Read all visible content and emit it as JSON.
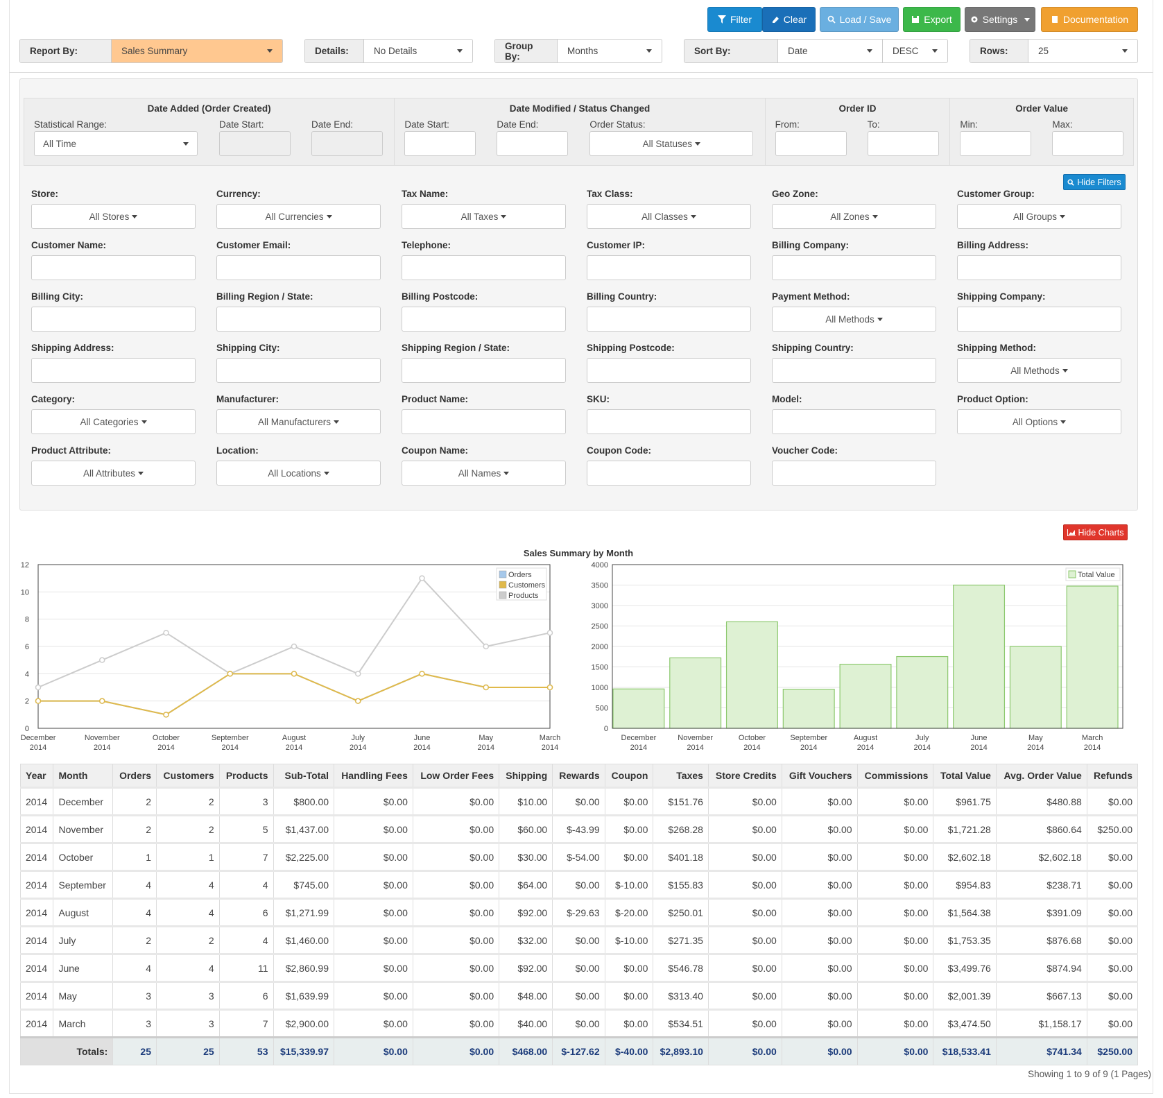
{
  "toolbar": {
    "filter": "Filter",
    "clear": "Clear",
    "load_save": "Load / Save",
    "export": "Export",
    "settings": "Settings",
    "documentation": "Documentation"
  },
  "report_bar": {
    "report_by_label": "Report By:",
    "report_by_value": "Sales Summary",
    "details_label": "Details:",
    "details_value": "No Details",
    "group_by_label": "Group By:",
    "group_by_value": "Months",
    "sort_by_label": "Sort By:",
    "sort_by_value": "Date",
    "sort_dir_value": "DESC",
    "rows_label": "Rows:",
    "rows_value": "25"
  },
  "date_filters": {
    "date_added_title": "Date Added (Order Created)",
    "statistical_range_label": "Statistical Range:",
    "statistical_range_value": "All Time",
    "date_start_label": "Date Start:",
    "date_end_label": "Date End:",
    "date_modified_title": "Date Modified / Status Changed",
    "order_status_label": "Order Status:",
    "order_status_value": "All Statuses",
    "order_id_title": "Order ID",
    "from_label": "From:",
    "to_label": "To:",
    "order_value_title": "Order Value",
    "min_label": "Min:",
    "max_label": "Max:"
  },
  "hide_filters": "Hide Filters",
  "filter_fields": [
    {
      "label": "Store:",
      "dropdown": "All Stores"
    },
    {
      "label": "Currency:",
      "dropdown": "All Currencies"
    },
    {
      "label": "Tax Name:",
      "dropdown": "All Taxes"
    },
    {
      "label": "Tax Class:",
      "dropdown": "All Classes"
    },
    {
      "label": "Geo Zone:",
      "dropdown": "All Zones"
    },
    {
      "label": "Customer Group:",
      "dropdown": "All Groups"
    },
    {
      "label": "Customer Name:",
      "dropdown": ""
    },
    {
      "label": "Customer Email:",
      "dropdown": ""
    },
    {
      "label": "Telephone:",
      "dropdown": ""
    },
    {
      "label": "Customer IP:",
      "dropdown": ""
    },
    {
      "label": "Billing Company:",
      "dropdown": ""
    },
    {
      "label": "Billing Address:",
      "dropdown": ""
    },
    {
      "label": "Billing City:",
      "dropdown": ""
    },
    {
      "label": "Billing Region / State:",
      "dropdown": ""
    },
    {
      "label": "Billing Postcode:",
      "dropdown": ""
    },
    {
      "label": "Billing Country:",
      "dropdown": ""
    },
    {
      "label": "Payment Method:",
      "dropdown": "All Methods"
    },
    {
      "label": "Shipping Company:",
      "dropdown": ""
    },
    {
      "label": "Shipping Address:",
      "dropdown": ""
    },
    {
      "label": "Shipping City:",
      "dropdown": ""
    },
    {
      "label": "Shipping Region / State:",
      "dropdown": ""
    },
    {
      "label": "Shipping Postcode:",
      "dropdown": ""
    },
    {
      "label": "Shipping Country:",
      "dropdown": ""
    },
    {
      "label": "Shipping Method:",
      "dropdown": "All Methods"
    },
    {
      "label": "Category:",
      "dropdown": "All Categories"
    },
    {
      "label": "Manufacturer:",
      "dropdown": "All Manufacturers"
    },
    {
      "label": "Product Name:",
      "dropdown": ""
    },
    {
      "label": "SKU:",
      "dropdown": ""
    },
    {
      "label": "Model:",
      "dropdown": ""
    },
    {
      "label": "Product Option:",
      "dropdown": "All Options"
    },
    {
      "label": "Product Attribute:",
      "dropdown": "All Attributes"
    },
    {
      "label": "Location:",
      "dropdown": "All Locations"
    },
    {
      "label": "Coupon Name:",
      "dropdown": "All Names"
    },
    {
      "label": "Coupon Code:",
      "dropdown": ""
    },
    {
      "label": "Voucher Code:",
      "dropdown": ""
    }
  ],
  "hide_charts": "Hide Charts",
  "chart_data": [
    {
      "type": "line",
      "title": "Sales Summary by Month",
      "categories": [
        "December 2014",
        "November 2014",
        "October 2014",
        "September 2014",
        "August 2014",
        "July 2014",
        "June 2014",
        "May 2014",
        "March 2014"
      ],
      "series": [
        {
          "name": "Orders",
          "values": [
            2,
            2,
            1,
            4,
            4,
            2,
            4,
            3,
            3
          ],
          "color": "#a6c8ea"
        },
        {
          "name": "Customers",
          "values": [
            2,
            2,
            1,
            4,
            4,
            2,
            4,
            3,
            3
          ],
          "color": "#e0b94a"
        },
        {
          "name": "Products",
          "values": [
            3,
            5,
            7,
            4,
            6,
            4,
            11,
            6,
            7
          ],
          "color": "#cccccc"
        }
      ],
      "ylim": [
        0,
        12
      ],
      "yticks": [
        0,
        2,
        4,
        6,
        8,
        10,
        12
      ],
      "grid": true,
      "legend": "top-right"
    },
    {
      "type": "bar",
      "categories": [
        "December 2014",
        "November 2014",
        "October 2014",
        "September 2014",
        "August 2014",
        "July 2014",
        "June 2014",
        "May 2014",
        "March 2014"
      ],
      "series": [
        {
          "name": "Total Value",
          "values": [
            961.75,
            1721.28,
            2602.18,
            954.83,
            1564.38,
            1753.35,
            3499.76,
            2001.39,
            3474.5
          ],
          "color": "#def1d3"
        }
      ],
      "ylim": [
        0,
        4000
      ],
      "yticks": [
        0,
        500,
        1000,
        1500,
        2000,
        2500,
        3000,
        3500,
        4000
      ],
      "grid": true,
      "legend": "top-right"
    }
  ],
  "table": {
    "headers": [
      "Year",
      "Month",
      "Orders",
      "Customers",
      "Products",
      "Sub-Total",
      "Handling Fees",
      "Low Order Fees",
      "Shipping",
      "Rewards",
      "Coupon",
      "Taxes",
      "Store Credits",
      "Gift Vouchers",
      "Commissions",
      "Total Value",
      "Avg. Order Value",
      "Refunds"
    ],
    "rows": [
      [
        "2014",
        "December",
        "2",
        "2",
        "3",
        "$800.00",
        "$0.00",
        "$0.00",
        "$10.00",
        "$0.00",
        "$0.00",
        "$151.76",
        "$0.00",
        "$0.00",
        "$0.00",
        "$961.75",
        "$480.88",
        "$0.00"
      ],
      [
        "2014",
        "November",
        "2",
        "2",
        "5",
        "$1,437.00",
        "$0.00",
        "$0.00",
        "$60.00",
        "$-43.99",
        "$0.00",
        "$268.28",
        "$0.00",
        "$0.00",
        "$0.00",
        "$1,721.28",
        "$860.64",
        "$250.00"
      ],
      [
        "2014",
        "October",
        "1",
        "1",
        "7",
        "$2,225.00",
        "$0.00",
        "$0.00",
        "$30.00",
        "$-54.00",
        "$0.00",
        "$401.18",
        "$0.00",
        "$0.00",
        "$0.00",
        "$2,602.18",
        "$2,602.18",
        "$0.00"
      ],
      [
        "2014",
        "September",
        "4",
        "4",
        "4",
        "$745.00",
        "$0.00",
        "$0.00",
        "$64.00",
        "$0.00",
        "$-10.00",
        "$155.83",
        "$0.00",
        "$0.00",
        "$0.00",
        "$954.83",
        "$238.71",
        "$0.00"
      ],
      [
        "2014",
        "August",
        "4",
        "4",
        "6",
        "$1,271.99",
        "$0.00",
        "$0.00",
        "$92.00",
        "$-29.63",
        "$-20.00",
        "$250.01",
        "$0.00",
        "$0.00",
        "$0.00",
        "$1,564.38",
        "$391.09",
        "$0.00"
      ],
      [
        "2014",
        "July",
        "2",
        "2",
        "4",
        "$1,460.00",
        "$0.00",
        "$0.00",
        "$32.00",
        "$0.00",
        "$-10.00",
        "$271.35",
        "$0.00",
        "$0.00",
        "$0.00",
        "$1,753.35",
        "$876.68",
        "$0.00"
      ],
      [
        "2014",
        "June",
        "4",
        "4",
        "11",
        "$2,860.99",
        "$0.00",
        "$0.00",
        "$92.00",
        "$0.00",
        "$0.00",
        "$546.78",
        "$0.00",
        "$0.00",
        "$0.00",
        "$3,499.76",
        "$874.94",
        "$0.00"
      ],
      [
        "2014",
        "May",
        "3",
        "3",
        "6",
        "$1,639.99",
        "$0.00",
        "$0.00",
        "$48.00",
        "$0.00",
        "$0.00",
        "$313.40",
        "$0.00",
        "$0.00",
        "$0.00",
        "$2,001.39",
        "$667.13",
        "$0.00"
      ],
      [
        "2014",
        "March",
        "3",
        "3",
        "7",
        "$2,900.00",
        "$0.00",
        "$0.00",
        "$40.00",
        "$0.00",
        "$0.00",
        "$534.51",
        "$0.00",
        "$0.00",
        "$0.00",
        "$3,474.50",
        "$1,158.17",
        "$0.00"
      ]
    ],
    "totals_label": "Totals:",
    "totals": [
      "25",
      "25",
      "53",
      "$15,339.97",
      "$0.00",
      "$0.00",
      "$468.00",
      "$-127.62",
      "$-40.00",
      "$2,893.10",
      "$0.00",
      "$0.00",
      "$0.00",
      "$18,533.41",
      "$741.34",
      "$250.00"
    ]
  },
  "pagination": "Showing 1 to 9 of 9 (1 Pages)"
}
